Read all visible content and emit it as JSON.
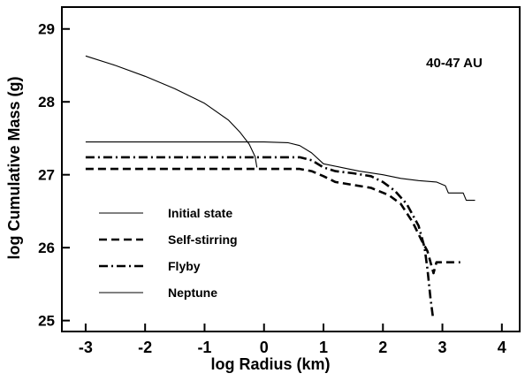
{
  "chart_data": {
    "type": "line",
    "title": "",
    "annotation": "40-47 AU",
    "xlabel": "log Radius (km)",
    "ylabel": "log Cumulative Mass (g)",
    "xlim": [
      -3.4,
      4.3
    ],
    "ylim": [
      24.85,
      29.3
    ],
    "x_ticks": [
      -3,
      -2,
      -1,
      0,
      1,
      2,
      3,
      4
    ],
    "x_tick_labels": [
      "-3",
      "-2",
      "-1",
      "0",
      "1",
      "2",
      "3",
      "4"
    ],
    "y_ticks": [
      25,
      26,
      27,
      28,
      29
    ],
    "y_tick_labels": [
      "25",
      "26",
      "27",
      "28",
      "29"
    ],
    "grid": false,
    "legend": "lower-left",
    "series": [
      {
        "name": "Initial state",
        "style": "solid",
        "weight": "thin",
        "color": "#000000",
        "points": [
          [
            -3,
            27.45
          ],
          [
            -1,
            27.45
          ],
          [
            0,
            27.45
          ],
          [
            0.4,
            27.44
          ],
          [
            0.6,
            27.4
          ],
          [
            0.8,
            27.3
          ],
          [
            1.0,
            27.15
          ],
          [
            1.3,
            27.1
          ],
          [
            1.6,
            27.05
          ],
          [
            2.0,
            27.0
          ],
          [
            2.3,
            26.95
          ],
          [
            2.6,
            26.92
          ],
          [
            2.9,
            26.9
          ],
          [
            3.05,
            26.85
          ],
          [
            3.1,
            26.75
          ],
          [
            3.35,
            26.75
          ],
          [
            3.4,
            26.65
          ],
          [
            3.55,
            26.65
          ]
        ]
      },
      {
        "name": "Self-stirring",
        "style": "dashed",
        "weight": "thick",
        "color": "#000000",
        "points": [
          [
            -3,
            27.08
          ],
          [
            0.6,
            27.08
          ],
          [
            0.8,
            27.05
          ],
          [
            1.0,
            26.98
          ],
          [
            1.2,
            26.9
          ],
          [
            1.5,
            26.86
          ],
          [
            1.8,
            26.82
          ],
          [
            2.1,
            26.72
          ],
          [
            2.3,
            26.6
          ],
          [
            2.5,
            26.35
          ],
          [
            2.65,
            26.1
          ],
          [
            2.75,
            25.95
          ],
          [
            2.8,
            25.8
          ],
          [
            2.85,
            25.65
          ],
          [
            2.9,
            25.8
          ],
          [
            3.3,
            25.8
          ]
        ]
      },
      {
        "name": "Flyby",
        "style": "dashdot",
        "weight": "thick",
        "color": "#000000",
        "points": [
          [
            -3,
            27.24
          ],
          [
            0.6,
            27.24
          ],
          [
            0.8,
            27.2
          ],
          [
            1.0,
            27.1
          ],
          [
            1.2,
            27.05
          ],
          [
            1.5,
            27.02
          ],
          [
            1.8,
            26.98
          ],
          [
            2.0,
            26.9
          ],
          [
            2.2,
            26.78
          ],
          [
            2.4,
            26.6
          ],
          [
            2.6,
            26.3
          ],
          [
            2.7,
            26.0
          ],
          [
            2.75,
            25.7
          ],
          [
            2.8,
            25.3
          ],
          [
            2.84,
            25.05
          ]
        ]
      },
      {
        "name": "Neptune",
        "style": "solid",
        "weight": "thin",
        "color": "#000000",
        "points": [
          [
            -3,
            28.63
          ],
          [
            -2.5,
            28.5
          ],
          [
            -2.0,
            28.35
          ],
          [
            -1.5,
            28.18
          ],
          [
            -1.0,
            27.98
          ],
          [
            -0.6,
            27.75
          ],
          [
            -0.4,
            27.58
          ],
          [
            -0.25,
            27.42
          ],
          [
            -0.15,
            27.25
          ],
          [
            -0.12,
            27.1
          ]
        ]
      }
    ]
  }
}
